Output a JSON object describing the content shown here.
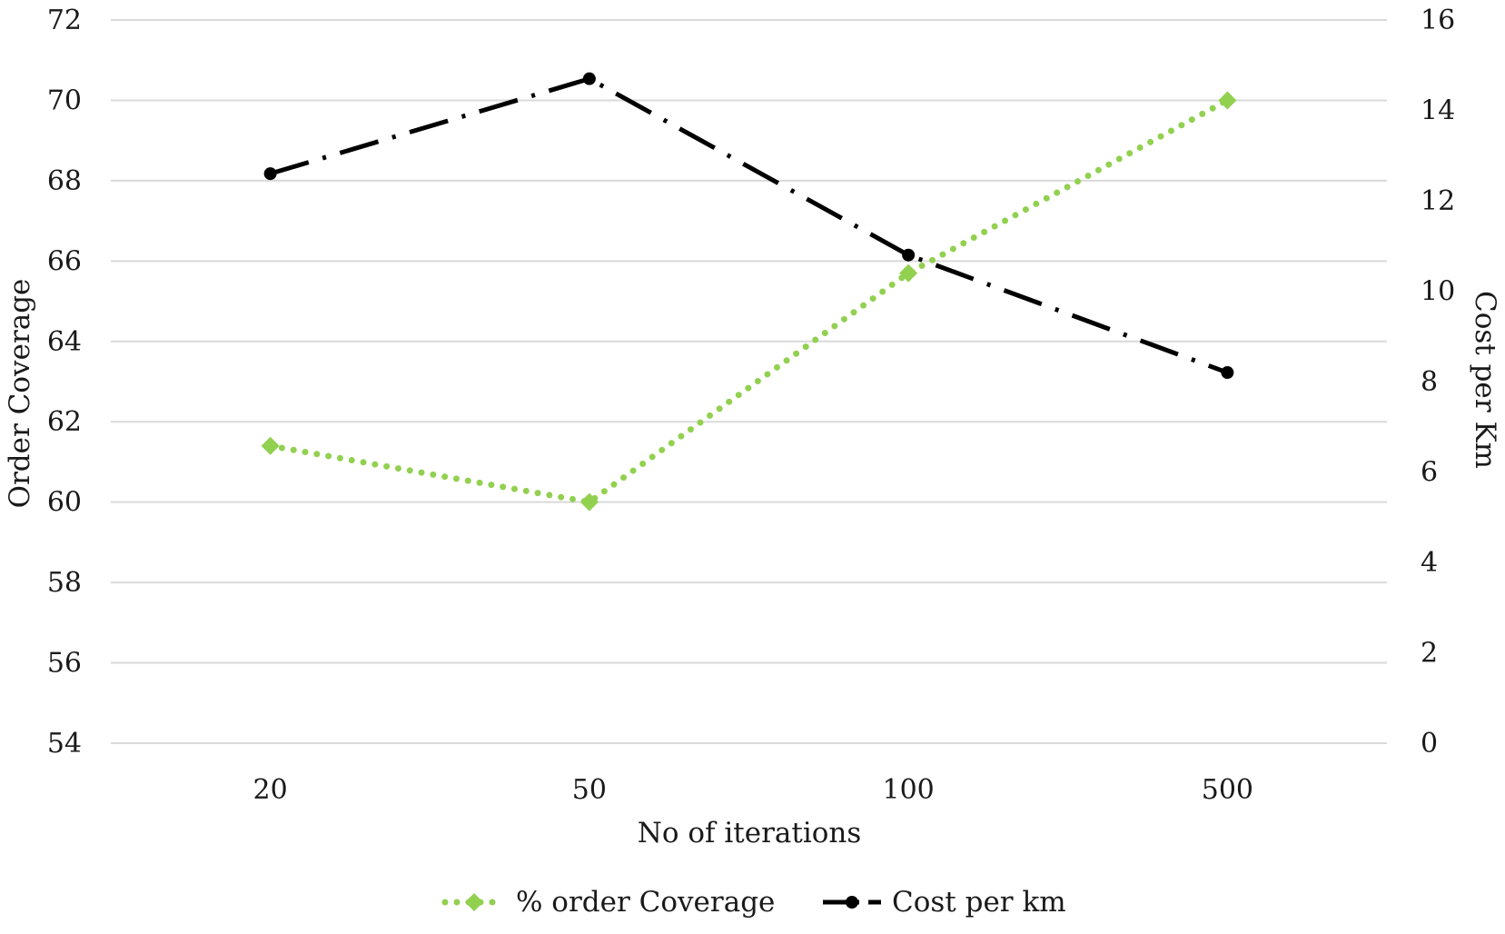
{
  "chart_data": {
    "type": "line",
    "categories": [
      "20",
      "50",
      "100",
      "500"
    ],
    "xlabel": "No of iterations",
    "ylabel": "Order Coverage",
    "y2label": "Cost per Km",
    "ylim": [
      54,
      72
    ],
    "yticks": [
      54,
      56,
      58,
      60,
      62,
      64,
      66,
      68,
      70,
      72
    ],
    "y2lim": [
      0,
      16
    ],
    "y2ticks": [
      0,
      2,
      4,
      6,
      8,
      10,
      12,
      14,
      16
    ],
    "grid": true,
    "legend_position": "bottom",
    "series": [
      {
        "name": "% order Coverage",
        "axis": "left",
        "values": [
          61.4,
          60.0,
          65.7,
          70.0
        ],
        "color": "#92d050",
        "line_style": "dotted",
        "marker": "diamond"
      },
      {
        "name": "Cost per km",
        "axis": "right",
        "values": [
          12.6,
          14.7,
          10.8,
          8.2
        ],
        "color": "#000000",
        "line_style": "dash-dot",
        "marker": "circle"
      }
    ]
  }
}
